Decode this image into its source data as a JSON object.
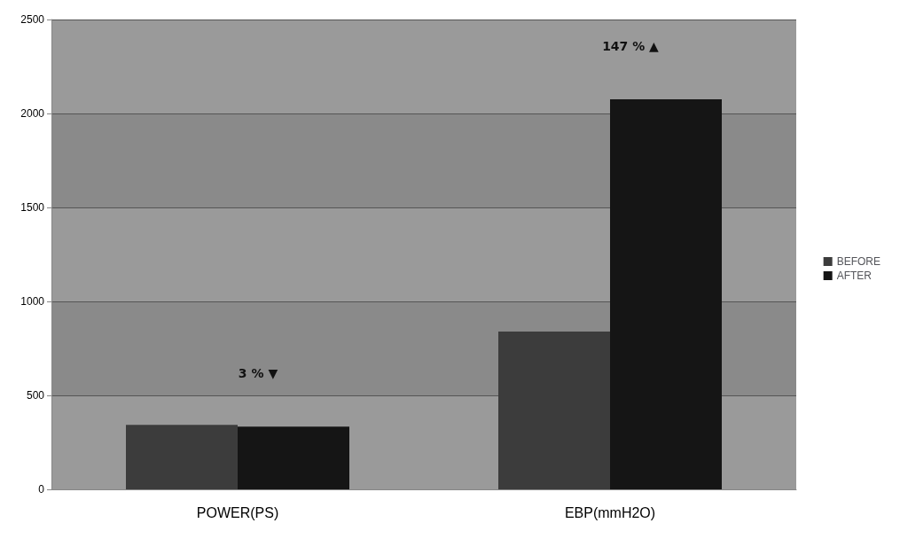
{
  "chart_data": {
    "type": "bar",
    "categories": [
      "POWER(PS)",
      "EBP(mmH2O)"
    ],
    "series": [
      {
        "name": "BEFORE",
        "color": "#3c3c3c",
        "values": [
          343,
          840
        ]
      },
      {
        "name": "AFTER",
        "color": "#151515",
        "values": [
          334,
          2075
        ]
      }
    ],
    "ylim": [
      0,
      2500
    ],
    "yticks": [
      0,
      500,
      1000,
      1500,
      2000,
      2500
    ],
    "grid": "y",
    "legend": "right",
    "annotations": [
      "3 % ▼",
      "147 % ▲"
    ]
  }
}
